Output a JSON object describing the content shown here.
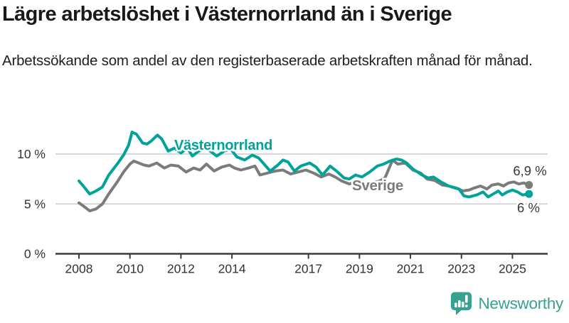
{
  "header": {
    "title": "Lägre arbetslöshet i Västernorrland än i Sverige",
    "subtitle": "Arbetssökande som andel av den registerbaserade arbetskraften månad för månad."
  },
  "footer": {
    "brand": "Newsworthy"
  },
  "colors": {
    "vasternorrland": "#00a39a",
    "sverige": "#7b7b7b",
    "grid": "#cccccc",
    "axis": "#3c3c3c",
    "tick_text": "#333333",
    "value_text": "#383838",
    "logo": "#38a18f"
  },
  "chart_data": {
    "type": "line",
    "title": "Lägre arbetslöshet i Västernorrland än i Sverige",
    "subtitle": "Arbetssökande som andel av den registerbaserade arbetskraften månad för månad.",
    "unit": "%",
    "x_axis": {
      "ticks": [
        2008,
        2010,
        2012,
        2014,
        2017,
        2019,
        2021,
        2023,
        2025
      ],
      "range": [
        2007.1,
        2026.4
      ],
      "grid": false
    },
    "y_axis": {
      "ticks": [
        {
          "value": 0,
          "label": "0 %"
        },
        {
          "value": 5,
          "label": "5 %"
        },
        {
          "value": 10,
          "label": "10 %"
        }
      ],
      "range": [
        0,
        15
      ],
      "grid": true
    },
    "legend_position": "inline-labels",
    "series": [
      {
        "name": "Sverige",
        "color": "#7b7b7b",
        "end_label": "6,9 %",
        "end_value": 6.9,
        "points": [
          [
            2008.0,
            5.1
          ],
          [
            2008.17,
            4.8
          ],
          [
            2008.42,
            4.3
          ],
          [
            2008.67,
            4.5
          ],
          [
            2008.92,
            5.0
          ],
          [
            2009.17,
            6.0
          ],
          [
            2009.5,
            7.2
          ],
          [
            2009.75,
            8.2
          ],
          [
            2010.0,
            9.0
          ],
          [
            2010.15,
            9.3
          ],
          [
            2010.35,
            9.1
          ],
          [
            2010.55,
            8.9
          ],
          [
            2010.75,
            8.8
          ],
          [
            2011.05,
            9.1
          ],
          [
            2011.35,
            8.6
          ],
          [
            2011.6,
            8.9
          ],
          [
            2011.9,
            8.8
          ],
          [
            2012.2,
            8.2
          ],
          [
            2012.5,
            8.6
          ],
          [
            2012.75,
            8.4
          ],
          [
            2013.0,
            9.0
          ],
          [
            2013.3,
            8.3
          ],
          [
            2013.6,
            8.7
          ],
          [
            2013.9,
            8.9
          ],
          [
            2014.1,
            8.6
          ],
          [
            2014.35,
            8.4
          ],
          [
            2014.65,
            8.6
          ],
          [
            2014.9,
            8.8
          ],
          [
            2015.1,
            7.9
          ],
          [
            2015.4,
            8.1
          ],
          [
            2015.7,
            8.3
          ],
          [
            2016.0,
            8.4
          ],
          [
            2016.3,
            8.0
          ],
          [
            2016.6,
            8.2
          ],
          [
            2016.9,
            8.4
          ],
          [
            2017.2,
            8.1
          ],
          [
            2017.5,
            7.7
          ],
          [
            2017.8,
            8.0
          ],
          [
            2018.05,
            7.7
          ],
          [
            2018.3,
            7.3
          ],
          [
            2018.6,
            7.0
          ],
          [
            2018.9,
            7.2
          ],
          [
            2019.2,
            7.0
          ],
          [
            2019.5,
            7.1
          ],
          [
            2019.8,
            7.3
          ],
          [
            2020.0,
            7.6
          ],
          [
            2020.3,
            9.4
          ],
          [
            2020.5,
            9.0
          ],
          [
            2020.8,
            9.1
          ],
          [
            2021.1,
            8.4
          ],
          [
            2021.4,
            8.1
          ],
          [
            2021.65,
            7.5
          ],
          [
            2021.95,
            7.35
          ],
          [
            2022.25,
            6.9
          ],
          [
            2022.5,
            6.8
          ],
          [
            2022.8,
            6.6
          ],
          [
            2023.05,
            6.3
          ],
          [
            2023.3,
            6.4
          ],
          [
            2023.5,
            6.6
          ],
          [
            2023.75,
            6.8
          ],
          [
            2024.0,
            6.5
          ],
          [
            2024.2,
            6.9
          ],
          [
            2024.45,
            7.0
          ],
          [
            2024.65,
            6.8
          ],
          [
            2024.85,
            7.1
          ],
          [
            2025.05,
            7.2
          ],
          [
            2025.25,
            7.0
          ],
          [
            2025.45,
            7.1
          ],
          [
            2025.65,
            6.9
          ]
        ]
      },
      {
        "name": "Västernorrland",
        "color": "#00a39a",
        "end_label": "6 %",
        "end_value": 6.0,
        "points": [
          [
            2008.0,
            7.3
          ],
          [
            2008.17,
            6.8
          ],
          [
            2008.42,
            6.0
          ],
          [
            2008.67,
            6.3
          ],
          [
            2008.92,
            6.7
          ],
          [
            2009.17,
            7.9
          ],
          [
            2009.5,
            9.0
          ],
          [
            2009.75,
            9.9
          ],
          [
            2009.95,
            10.9
          ],
          [
            2010.08,
            12.2
          ],
          [
            2010.25,
            12.0
          ],
          [
            2010.5,
            11.1
          ],
          [
            2010.67,
            11.0
          ],
          [
            2010.83,
            11.3
          ],
          [
            2011.08,
            11.9
          ],
          [
            2011.25,
            11.5
          ],
          [
            2011.5,
            10.3
          ],
          [
            2011.75,
            10.6
          ],
          [
            2012.0,
            10.1
          ],
          [
            2012.25,
            10.6
          ],
          [
            2012.45,
            9.8
          ],
          [
            2012.7,
            10.3
          ],
          [
            2013.0,
            10.6
          ],
          [
            2013.2,
            10.2
          ],
          [
            2013.4,
            9.8
          ],
          [
            2013.7,
            10.3
          ],
          [
            2013.95,
            10.5
          ],
          [
            2014.2,
            9.7
          ],
          [
            2014.5,
            9.4
          ],
          [
            2014.8,
            9.9
          ],
          [
            2015.05,
            9.6
          ],
          [
            2015.5,
            8.3
          ],
          [
            2015.8,
            8.9
          ],
          [
            2016.0,
            9.4
          ],
          [
            2016.2,
            9.2
          ],
          [
            2016.45,
            8.3
          ],
          [
            2016.7,
            8.8
          ],
          [
            2017.05,
            9.1
          ],
          [
            2017.3,
            8.7
          ],
          [
            2017.55,
            7.9
          ],
          [
            2017.85,
            8.8
          ],
          [
            2018.1,
            8.3
          ],
          [
            2018.4,
            7.6
          ],
          [
            2018.6,
            7.5
          ],
          [
            2018.85,
            7.9
          ],
          [
            2019.1,
            7.7
          ],
          [
            2019.4,
            8.2
          ],
          [
            2019.7,
            8.8
          ],
          [
            2019.95,
            9.0
          ],
          [
            2020.2,
            9.3
          ],
          [
            2020.45,
            9.5
          ],
          [
            2020.65,
            9.4
          ],
          [
            2020.85,
            9.1
          ],
          [
            2021.1,
            8.5
          ],
          [
            2021.45,
            7.9
          ],
          [
            2021.7,
            7.6
          ],
          [
            2021.9,
            7.7
          ],
          [
            2022.2,
            7.2
          ],
          [
            2022.5,
            6.8
          ],
          [
            2022.75,
            6.6
          ],
          [
            2022.9,
            6.5
          ],
          [
            2023.1,
            5.8
          ],
          [
            2023.3,
            5.7
          ],
          [
            2023.6,
            5.9
          ],
          [
            2023.85,
            6.2
          ],
          [
            2024.05,
            5.7
          ],
          [
            2024.25,
            6.0
          ],
          [
            2024.45,
            6.3
          ],
          [
            2024.6,
            5.9
          ],
          [
            2024.8,
            6.2
          ],
          [
            2025.0,
            6.4
          ],
          [
            2025.2,
            6.2
          ],
          [
            2025.4,
            5.9
          ],
          [
            2025.65,
            6.0
          ]
        ]
      }
    ]
  }
}
